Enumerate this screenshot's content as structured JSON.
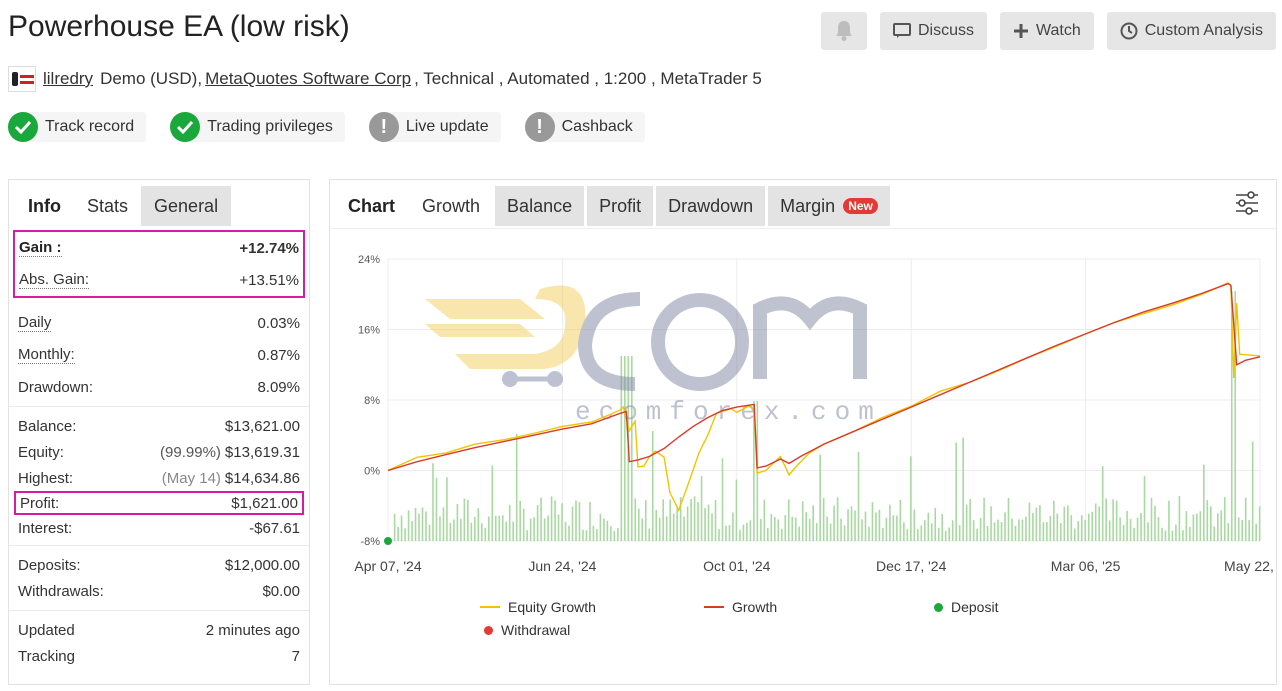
{
  "page": {
    "title": "Powerhouse EA (low risk)"
  },
  "top_buttons": {
    "bell_icon": "bell-icon",
    "discuss": "Discuss",
    "watch": "Watch",
    "custom_analysis": "Custom Analysis"
  },
  "meta": {
    "user": "lilredry",
    "account": "Demo (USD),",
    "broker": "MetaQuotes Software Corp",
    "rest": ", Technical , Automated , 1:200 , MetaTrader 5"
  },
  "badges": [
    {
      "label": "Track record",
      "status": "ok"
    },
    {
      "label": "Trading privileges",
      "status": "ok"
    },
    {
      "label": "Live update",
      "status": "warn"
    },
    {
      "label": "Cashback",
      "status": "warn"
    }
  ],
  "left_tabs": [
    "Info",
    "Stats",
    "General"
  ],
  "stats": {
    "gain_label": "Gain :",
    "gain": "+12.74%",
    "abs_gain_label": "Abs. Gain:",
    "abs_gain": "+13.51%",
    "daily_label": "Daily",
    "daily": "0.03%",
    "monthly_label": "Monthly:",
    "monthly": "0.87%",
    "drawdown_label": "Drawdown:",
    "drawdown": "8.09%",
    "balance_label": "Balance:",
    "balance": "$13,621.00",
    "equity_label": "Equity:",
    "equity_pct": "(99.99%)",
    "equity": "$13,619.31",
    "highest_label": "Highest:",
    "highest_date": "(May 14)",
    "highest": "$14,634.86",
    "profit_label": "Profit:",
    "profit": "$1,621.00",
    "interest_label": "Interest:",
    "interest": "-$67.61",
    "deposits_label": "Deposits:",
    "deposits": "$12,000.00",
    "withdrawals_label": "Withdrawals:",
    "withdrawals": "$0.00",
    "updated_label": "Updated",
    "updated": "2 minutes ago",
    "tracking_label": "Tracking",
    "tracking": "7"
  },
  "chart_tabs": {
    "chart": "Chart",
    "growth": "Growth",
    "balance": "Balance",
    "profit": "Profit",
    "drawdown": "Drawdown",
    "margin": "Margin",
    "new_badge": "New"
  },
  "watermark": {
    "brand": "ecomforex.com"
  },
  "colors": {
    "equity": "#f2c400",
    "growth": "#d93b2b",
    "deposit": "#1aa83c",
    "withdrawal": "#e53935",
    "bars": "#a8d9a0",
    "gain_box": "#d71ba6"
  },
  "chart_data": {
    "type": "line",
    "y_ticks": [
      "24%",
      "16%",
      "8%",
      "0%",
      "-8%"
    ],
    "ylim": [
      -8,
      24
    ],
    "x_ticks": [
      "Apr 07, '24",
      "Jun 24, '24",
      "Oct 01, '24",
      "Dec 17, '24",
      "Mar 06, '25",
      "May 22, '25"
    ],
    "series": [
      {
        "name": "Equity Growth",
        "points": [
          [
            0,
            0
          ],
          [
            10,
            1.5
          ],
          [
            20,
            2.0
          ],
          [
            30,
            3.0
          ],
          [
            40,
            3.5
          ],
          [
            50,
            4.2
          ],
          [
            60,
            5.0
          ],
          [
            70,
            5.5
          ],
          [
            76,
            6.3
          ],
          [
            80,
            6.9
          ],
          [
            81,
            7.2
          ],
          [
            83,
            4.5
          ],
          [
            85,
            5.6
          ],
          [
            86,
            0.4
          ],
          [
            88,
            0.5
          ],
          [
            90,
            1.6
          ],
          [
            92,
            2.2
          ],
          [
            95,
            1.5
          ],
          [
            97,
            -2.5
          ],
          [
            100,
            -4.5
          ],
          [
            103,
            -1.8
          ],
          [
            107,
            2.0
          ],
          [
            110,
            4.0
          ],
          [
            113,
            6.5
          ],
          [
            118,
            7.0
          ],
          [
            120,
            6.6
          ],
          [
            124,
            7.3
          ],
          [
            126,
            7.0
          ],
          [
            127,
            -0.3
          ],
          [
            130,
            0.0
          ],
          [
            135,
            1.6
          ],
          [
            138,
            -0.5
          ],
          [
            140,
            0.3
          ],
          [
            145,
            2.0
          ],
          [
            150,
            3.0
          ],
          [
            160,
            4.4
          ],
          [
            170,
            6.0
          ],
          [
            180,
            7.3
          ],
          [
            190,
            9.0
          ],
          [
            200,
            10.0
          ],
          [
            210,
            11.3
          ],
          [
            220,
            12.8
          ],
          [
            230,
            14.1
          ],
          [
            240,
            15.5
          ],
          [
            250,
            16.8
          ],
          [
            260,
            17.8
          ],
          [
            270,
            18.8
          ],
          [
            280,
            20.0
          ],
          [
            285,
            20.7
          ],
          [
            289,
            21.3
          ],
          [
            290,
            21.0
          ],
          [
            291,
            10.5
          ],
          [
            292,
            19.0
          ],
          [
            293,
            13.2
          ],
          [
            300,
            13.0
          ]
        ]
      },
      {
        "name": "Growth",
        "points": [
          [
            0,
            0
          ],
          [
            10,
            1.0
          ],
          [
            20,
            1.8
          ],
          [
            30,
            2.6
          ],
          [
            40,
            3.3
          ],
          [
            50,
            4.0
          ],
          [
            60,
            4.7
          ],
          [
            70,
            5.3
          ],
          [
            75,
            5.9
          ],
          [
            80,
            6.5
          ],
          [
            82,
            6.7
          ],
          [
            83,
            1.0
          ],
          [
            86,
            1.2
          ],
          [
            90,
            1.6
          ],
          [
            95,
            2.5
          ],
          [
            100,
            3.8
          ],
          [
            105,
            5.0
          ],
          [
            110,
            6.0
          ],
          [
            115,
            6.8
          ],
          [
            120,
            7.2
          ],
          [
            126,
            7.5
          ],
          [
            127,
            0.3
          ],
          [
            130,
            0.5
          ],
          [
            135,
            1.3
          ],
          [
            138,
            0.8
          ],
          [
            142,
            1.6
          ],
          [
            150,
            3.0
          ],
          [
            160,
            4.4
          ],
          [
            170,
            5.8
          ],
          [
            180,
            7.2
          ],
          [
            190,
            8.6
          ],
          [
            200,
            10.0
          ],
          [
            210,
            11.4
          ],
          [
            220,
            12.8
          ],
          [
            230,
            14.2
          ],
          [
            240,
            15.5
          ],
          [
            250,
            16.8
          ],
          [
            260,
            18.0
          ],
          [
            270,
            19.0
          ],
          [
            280,
            20.1
          ],
          [
            289,
            21.2
          ],
          [
            290,
            21.0
          ],
          [
            292,
            12.0
          ],
          [
            295,
            12.5
          ],
          [
            300,
            12.9
          ]
        ]
      }
    ],
    "deposits": [
      {
        "x": 0,
        "y": -8
      }
    ],
    "legend": [
      "Equity Growth",
      "Growth",
      "Deposit",
      "Withdrawal"
    ]
  }
}
